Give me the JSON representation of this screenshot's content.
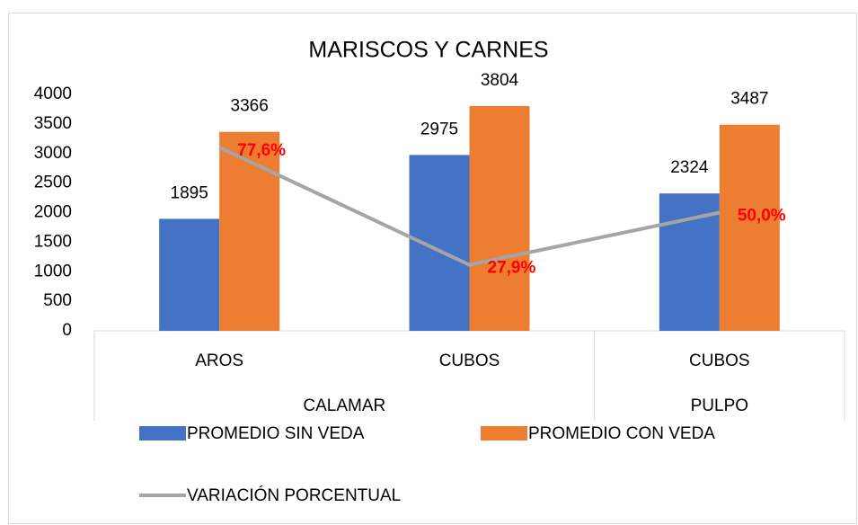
{
  "chart_data": {
    "type": "bar",
    "title": "MARISCOS Y CARNES",
    "categories": [
      "AROS",
      "CUBOS",
      "CUBOS"
    ],
    "groups": [
      {
        "name": "CALAMAR",
        "span": 2
      },
      {
        "name": "PULPO",
        "span": 1
      }
    ],
    "ylim": [
      0,
      4000
    ],
    "yticks": [
      0,
      500,
      1000,
      1500,
      2000,
      2500,
      3000,
      3500,
      4000
    ],
    "y2lim": [
      0,
      100
    ],
    "series": [
      {
        "name": "PROMEDIO SIN VEDA",
        "type": "bar",
        "color": "#4472c4",
        "values": [
          1895,
          2975,
          2324
        ]
      },
      {
        "name": "PROMEDIO CON VEDA",
        "type": "bar",
        "color": "#ed7d31",
        "values": [
          3366,
          3804,
          3487
        ]
      },
      {
        "name": "VARIACIÓN PORCENTUAL",
        "type": "line",
        "axis": "y2",
        "color": "#a5a5a5",
        "label_color": "#ff0000",
        "values": [
          77.6,
          27.9,
          50.0
        ],
        "value_labels": [
          "77,6%",
          "27,9%",
          "50,0%"
        ]
      }
    ]
  }
}
